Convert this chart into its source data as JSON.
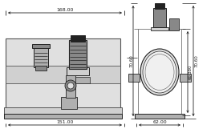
{
  "line_color": "#555555",
  "dark_color": "#222222",
  "gray1": "#c8c8c8",
  "gray2": "#b0b0b0",
  "gray3": "#888888",
  "gray4": "#555555",
  "gray5": "#e0e0e0",
  "gray6": "#d0d0d0",
  "dim_top": "168.00",
  "dim_bottom_left": "151.00",
  "dim_bottom_right": "62.00",
  "dim_right_full": "70.60",
  "dim_right_inner": "60.380",
  "fig_width": 2.73,
  "fig_height": 1.66,
  "dpi": 100
}
